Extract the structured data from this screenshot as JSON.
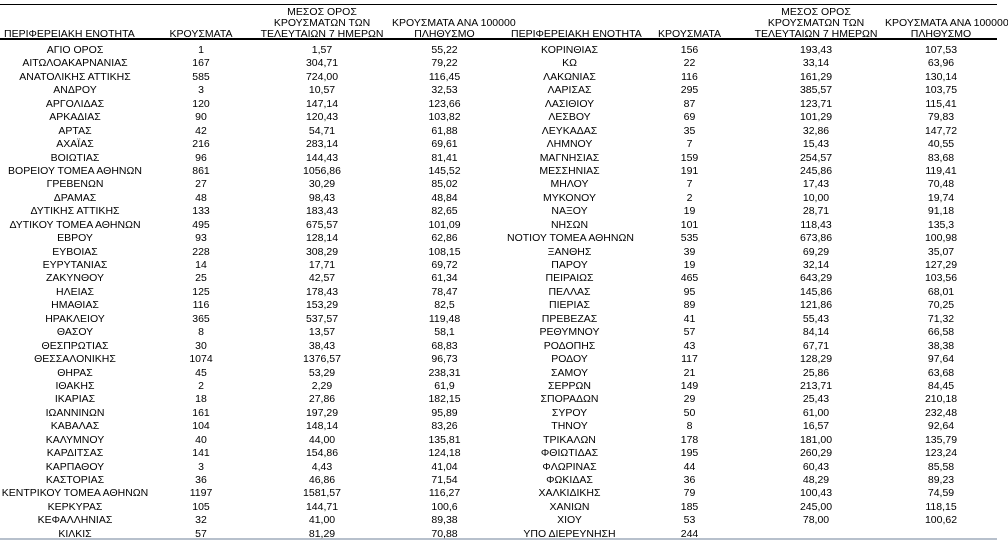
{
  "columns": {
    "region": "ΠΕΡΙΦΕΡΕΙΑΚΗ ΕΝΟΤΗΤΑ",
    "cases": "ΚΡΟΥΣΜΑΤΑ",
    "avg7_line1": "ΜΕΣΟΣ ΟΡΟΣ",
    "avg7_line2": "ΚΡΟΥΣΜΑΤΩΝ ΤΩΝ",
    "avg7_line3": "ΤΕΛΕΥΤΑΙΩΝ 7 ΗΜΕΡΩΝ",
    "per100k_line1": "ΚΡΟΥΣΜΑΤΑ ΑΝΑ 100000",
    "per100k_line2": "ΠΛΗΘΥΣΜΟ"
  },
  "colors": {
    "text": "#000000",
    "rule_dark": "#000000",
    "rule_bottom": "#b7c0cc",
    "background": "#ffffff"
  },
  "left_table": {
    "rows": [
      [
        "ΑΓΙΟ ΟΡΟΣ",
        "1",
        "1,57",
        "55,22"
      ],
      [
        "ΑΙΤΩΛΟΑΚΑΡΝΑΝΙΑΣ",
        "167",
        "304,71",
        "79,22"
      ],
      [
        "ΑΝΑΤΟΛΙΚΗΣ ΑΤΤΙΚΗΣ",
        "585",
        "724,00",
        "116,45"
      ],
      [
        "ΑΝΔΡΟΥ",
        "3",
        "10,57",
        "32,53"
      ],
      [
        "ΑΡΓΟΛΙΔΑΣ",
        "120",
        "147,14",
        "123,66"
      ],
      [
        "ΑΡΚΑΔΙΑΣ",
        "90",
        "120,43",
        "103,82"
      ],
      [
        "ΑΡΤΑΣ",
        "42",
        "54,71",
        "61,88"
      ],
      [
        "ΑΧΑΪΑΣ",
        "216",
        "283,14",
        "69,61"
      ],
      [
        "ΒΟΙΩΤΙΑΣ",
        "96",
        "144,43",
        "81,41"
      ],
      [
        "ΒΟΡΕΙΟΥ ΤΟΜΕΑ ΑΘΗΝΩΝ",
        "861",
        "1056,86",
        "145,52"
      ],
      [
        "ΓΡΕΒΕΝΩΝ",
        "27",
        "30,29",
        "85,02"
      ],
      [
        "ΔΡΑΜΑΣ",
        "48",
        "98,43",
        "48,84"
      ],
      [
        "ΔΥΤΙΚΗΣ ΑΤΤΙΚΗΣ",
        "133",
        "183,43",
        "82,65"
      ],
      [
        "ΔΥΤΙΚΟΥ ΤΟΜΕΑ ΑΘΗΝΩΝ",
        "495",
        "675,57",
        "101,09"
      ],
      [
        "ΕΒΡΟΥ",
        "93",
        "128,14",
        "62,86"
      ],
      [
        "ΕΥΒΟΙΑΣ",
        "228",
        "308,29",
        "108,15"
      ],
      [
        "ΕΥΡΥΤΑΝΙΑΣ",
        "14",
        "17,71",
        "69,72"
      ],
      [
        "ΖΑΚΥΝΘΟΥ",
        "25",
        "42,57",
        "61,34"
      ],
      [
        "ΗΛΕΙΑΣ",
        "125",
        "178,43",
        "78,47"
      ],
      [
        "ΗΜΑΘΙΑΣ",
        "116",
        "153,29",
        "82,5"
      ],
      [
        "ΗΡΑΚΛΕΙΟΥ",
        "365",
        "537,57",
        "119,48"
      ],
      [
        "ΘΑΣΟΥ",
        "8",
        "13,57",
        "58,1"
      ],
      [
        "ΘΕΣΠΡΩΤΙΑΣ",
        "30",
        "38,43",
        "68,83"
      ],
      [
        "ΘΕΣΣΑΛΟΝΙΚΗΣ",
        "1074",
        "1376,57",
        "96,73"
      ],
      [
        "ΘΗΡΑΣ",
        "45",
        "53,29",
        "238,31"
      ],
      [
        "ΙΘΑΚΗΣ",
        "2",
        "2,29",
        "61,9"
      ],
      [
        "ΙΚΑΡΙΑΣ",
        "18",
        "27,86",
        "182,15"
      ],
      [
        "ΙΩΑΝΝΙΝΩΝ",
        "161",
        "197,29",
        "95,89"
      ],
      [
        "ΚΑΒΑΛΑΣ",
        "104",
        "148,14",
        "83,26"
      ],
      [
        "ΚΑΛΥΜΝΟΥ",
        "40",
        "44,00",
        "135,81"
      ],
      [
        "ΚΑΡΔΙΤΣΑΣ",
        "141",
        "154,86",
        "124,18"
      ],
      [
        "ΚΑΡΠΑΘΟΥ",
        "3",
        "4,43",
        "41,04"
      ],
      [
        "ΚΑΣΤΟΡΙΑΣ",
        "36",
        "46,86",
        "71,54"
      ],
      [
        "ΚΕΝΤΡΙΚΟΥ ΤΟΜΕΑ ΑΘΗΝΩΝ",
        "1197",
        "1581,57",
        "116,27"
      ],
      [
        "ΚΕΡΚΥΡΑΣ",
        "105",
        "144,71",
        "100,6"
      ],
      [
        "ΚΕΦΑΛΛΗΝΙΑΣ",
        "32",
        "41,00",
        "89,38"
      ],
      [
        "ΚΙΛΚΙΣ",
        "57",
        "81,29",
        "70,88"
      ]
    ]
  },
  "right_table": {
    "rows": [
      [
        "ΚΟΡΙΝΘΙΑΣ",
        "156",
        "193,43",
        "107,53"
      ],
      [
        "ΚΩ",
        "22",
        "33,14",
        "63,96"
      ],
      [
        "ΛΑΚΩΝΙΑΣ",
        "116",
        "161,29",
        "130,14"
      ],
      [
        "ΛΑΡΙΣΑΣ",
        "295",
        "385,57",
        "103,75"
      ],
      [
        "ΛΑΣΙΘΙΟΥ",
        "87",
        "123,71",
        "115,41"
      ],
      [
        "ΛΕΣΒΟΥ",
        "69",
        "101,29",
        "79,83"
      ],
      [
        "ΛΕΥΚΑΔΑΣ",
        "35",
        "32,86",
        "147,72"
      ],
      [
        "ΛΗΜΝΟΥ",
        "7",
        "15,43",
        "40,55"
      ],
      [
        "ΜΑΓΝΗΣΙΑΣ",
        "159",
        "254,57",
        "83,68"
      ],
      [
        "ΜΕΣΣΗΝΙΑΣ",
        "191",
        "245,86",
        "119,41"
      ],
      [
        "ΜΗΛΟΥ",
        "7",
        "17,43",
        "70,48"
      ],
      [
        "ΜΥΚΟΝΟΥ",
        "2",
        "10,00",
        "19,74"
      ],
      [
        "ΝΑΞΟΥ",
        "19",
        "28,71",
        "91,18"
      ],
      [
        "ΝΗΣΩΝ",
        "101",
        "118,43",
        "135,3"
      ],
      [
        "ΝΟΤΙΟΥ ΤΟΜΕΑ ΑΘΗΝΩΝ",
        "535",
        "673,86",
        "100,98"
      ],
      [
        "ΞΑΝΘΗΣ",
        "39",
        "69,29",
        "35,07"
      ],
      [
        "ΠΑΡΟΥ",
        "19",
        "32,14",
        "127,29"
      ],
      [
        "ΠΕΙΡΑΙΩΣ",
        "465",
        "643,29",
        "103,56"
      ],
      [
        "ΠΕΛΛΑΣ",
        "95",
        "145,86",
        "68,01"
      ],
      [
        "ΠΙΕΡΙΑΣ",
        "89",
        "121,86",
        "70,25"
      ],
      [
        "ΠΡΕΒΕΖΑΣ",
        "41",
        "55,43",
        "71,32"
      ],
      [
        "ΡΕΘΥΜΝΟΥ",
        "57",
        "84,14",
        "66,58"
      ],
      [
        "ΡΟΔΟΠΗΣ",
        "43",
        "67,71",
        "38,38"
      ],
      [
        "ΡΟΔΟΥ",
        "117",
        "128,29",
        "97,64"
      ],
      [
        "ΣΑΜΟΥ",
        "21",
        "25,86",
        "63,68"
      ],
      [
        "ΣΕΡΡΩΝ",
        "149",
        "213,71",
        "84,45"
      ],
      [
        "ΣΠΟΡΑΔΩΝ",
        "29",
        "25,43",
        "210,18"
      ],
      [
        "ΣΥΡΟΥ",
        "50",
        "61,00",
        "232,48"
      ],
      [
        "ΤΗΝΟΥ",
        "8",
        "16,57",
        "92,64"
      ],
      [
        "ΤΡΙΚΑΛΩΝ",
        "178",
        "181,00",
        "135,79"
      ],
      [
        "ΦΘΙΩΤΙΔΑΣ",
        "195",
        "260,29",
        "123,24"
      ],
      [
        "ΦΛΩΡΙΝΑΣ",
        "44",
        "60,43",
        "85,58"
      ],
      [
        "ΦΩΚΙΔΑΣ",
        "36",
        "48,29",
        "89,23"
      ],
      [
        "ΧΑΛΚΙΔΙΚΗΣ",
        "79",
        "100,43",
        "74,59"
      ],
      [
        "ΧΑΝΙΩΝ",
        "185",
        "245,00",
        "118,15"
      ],
      [
        "ΧΙΟΥ",
        "53",
        "78,00",
        "100,62"
      ],
      [
        "ΥΠΟ ΔΙΕΡΕΥΝΗΣΗ",
        "244",
        "",
        ""
      ]
    ]
  }
}
